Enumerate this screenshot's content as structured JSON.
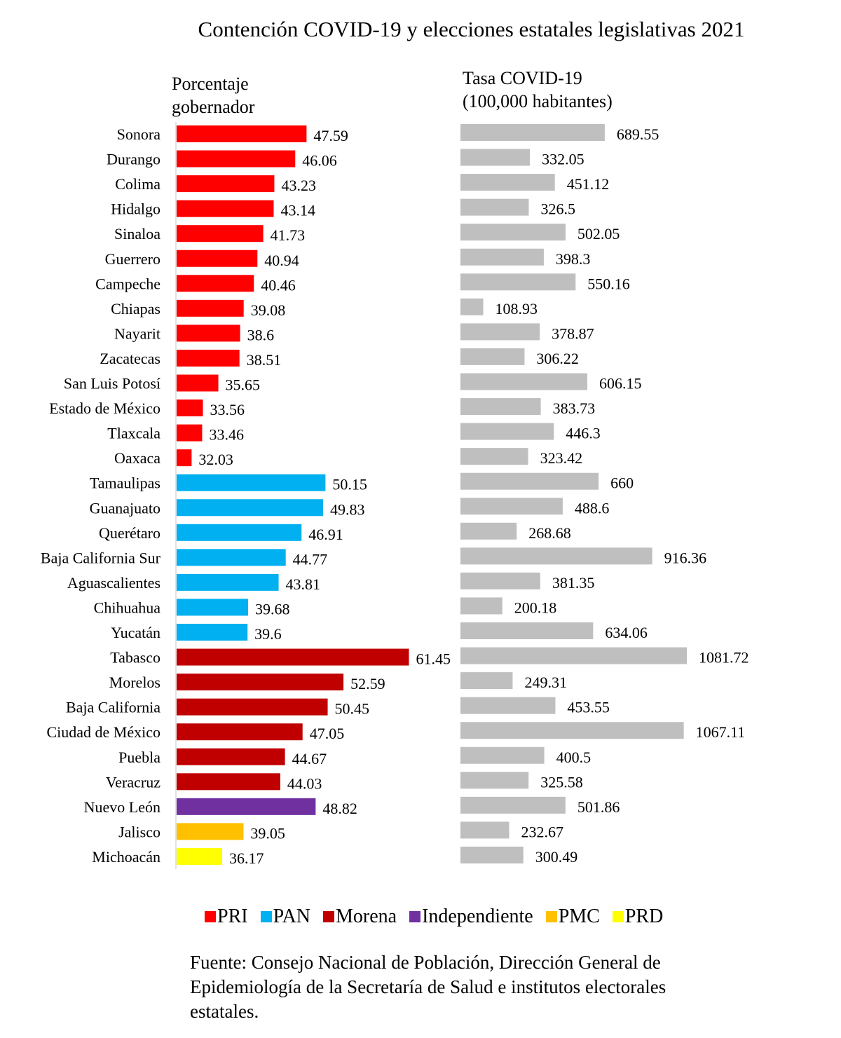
{
  "chart_data": [
    {
      "type": "bar",
      "orientation": "horizontal",
      "title": "Contención COVID-19 y elecciones estatales legislativas  2021",
      "header": [
        "Porcentaje",
        "gobernador"
      ],
      "xlim": [
        30,
        65
      ],
      "grid": false,
      "categories": [
        "Sonora",
        "Durango",
        "Colima",
        "Hidalgo",
        "Sinaloa",
        "Guerrero",
        "Campeche",
        "Chiapas",
        "Nayarit",
        "Zacatecas",
        "San Luis Potosí",
        "Estado de México",
        "Tlaxcala",
        "Oaxaca",
        "Tamaulipas",
        "Guanajuato",
        "Querétaro",
        "Baja California Sur",
        "Aguascalientes",
        "Chihuahua",
        "Yucatán",
        "Tabasco",
        "Morelos",
        "Baja California",
        "Ciudad de México",
        "Puebla",
        "Veracruz",
        "Nuevo León",
        "Jalisco",
        "Michoacán"
      ],
      "values": [
        47.59,
        46.06,
        43.23,
        43.14,
        41.73,
        40.94,
        40.46,
        39.08,
        38.6,
        38.51,
        35.65,
        33.56,
        33.46,
        32.03,
        50.15,
        49.83,
        46.91,
        44.77,
        43.81,
        39.68,
        39.6,
        61.45,
        52.59,
        50.45,
        47.05,
        44.67,
        44.03,
        48.82,
        39.05,
        36.17
      ],
      "value_labels": [
        "47.59",
        "46.06",
        "43.23",
        "43.14",
        "41.73",
        "40.94",
        "40.46",
        "39.08",
        "38.6",
        "38.51",
        "35.65",
        "33.56",
        "33.46",
        "32.03",
        "50.15",
        "49.83",
        "46.91",
        "44.77",
        "43.81",
        "39.68",
        "39.6",
        "61.45",
        "52.59",
        "50.45",
        "47.05",
        "44.67",
        "44.03",
        "48.82",
        "39.05",
        "36.17"
      ],
      "party": [
        "PRI",
        "PRI",
        "PRI",
        "PRI",
        "PRI",
        "PRI",
        "PRI",
        "PRI",
        "PRI",
        "PRI",
        "PRI",
        "PRI",
        "PRI",
        "PRI",
        "PAN",
        "PAN",
        "PAN",
        "PAN",
        "PAN",
        "PAN",
        "PAN",
        "Morena",
        "Morena",
        "Morena",
        "Morena",
        "Morena",
        "Morena",
        "Independiente",
        "PMC",
        "PRD"
      ]
    },
    {
      "type": "bar",
      "orientation": "horizontal",
      "header": [
        "Tasa COVID-19",
        "(100,000 habitantes)"
      ],
      "xlim": [
        0,
        1100
      ],
      "grid": false,
      "color": "#BFBFBF",
      "values": [
        689.55,
        332.05,
        451.12,
        326.5,
        502.05,
        398.3,
        550.16,
        108.93,
        378.87,
        306.22,
        606.15,
        383.73,
        446.3,
        323.42,
        660,
        488.6,
        268.68,
        916.36,
        381.35,
        200.18,
        634.06,
        1081.72,
        249.31,
        453.55,
        1067.11,
        400.5,
        325.58,
        501.86,
        232.67,
        300.49
      ],
      "value_labels": [
        "689.55",
        "332.05",
        "451.12",
        "326.5",
        "502.05",
        "398.3",
        "550.16",
        "108.93",
        "378.87",
        "306.22",
        "606.15",
        "383.73",
        "446.3",
        "323.42",
        "660",
        "488.6",
        "268.68",
        "916.36",
        "381.35",
        "200.18",
        "634.06",
        "1081.72",
        "249.31",
        "453.55",
        "1067.11",
        "400.5",
        "325.58",
        "501.86",
        "232.67",
        "300.49"
      ]
    }
  ],
  "legend": [
    {
      "name": "PRI",
      "color": "#FF0000"
    },
    {
      "name": "PAN",
      "color": "#00B0F0"
    },
    {
      "name": "Morena",
      "color": "#C00000"
    },
    {
      "name": "Independiente",
      "color": "#7030A0"
    },
    {
      "name": "PMC",
      "color": "#FFC000"
    },
    {
      "name": "PRD",
      "color": "#FFFF00"
    }
  ],
  "legend_placement": "bottom",
  "source": [
    "Fuente: Consejo Nacional de Población, Dirección General de",
    "Epidemiología de la Secretaría de Salud e institutos electorales",
    "estatales."
  ]
}
